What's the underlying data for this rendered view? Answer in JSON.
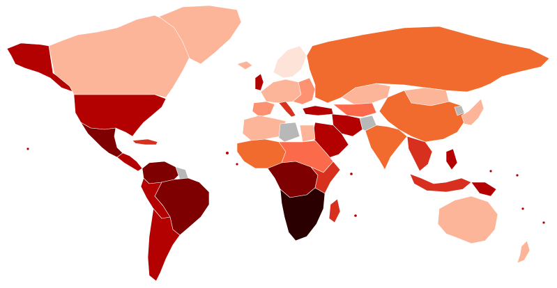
{
  "map": {
    "type": "choropleth",
    "background": "#ffffff",
    "border_color": "#ffffff",
    "palette": {
      "c0": "#fde3d8",
      "c1": "#fdb59a",
      "c2": "#fc9272",
      "c3": "#fb6a4a",
      "c4": "#f26b2e",
      "c5": "#d7301f",
      "c6": "#b30000",
      "c7": "#7f0000",
      "c8": "#4a0000",
      "c9": "#2b0000",
      "nodata": "#b8b8b8"
    },
    "regions": [
      {
        "id": "alaska",
        "level": "c6"
      },
      {
        "id": "canada",
        "level": "c1"
      },
      {
        "id": "greenland",
        "level": "c1"
      },
      {
        "id": "united-states",
        "level": "c6"
      },
      {
        "id": "mexico",
        "level": "c7"
      },
      {
        "id": "central-america",
        "level": "c6"
      },
      {
        "id": "caribbean",
        "level": "c5"
      },
      {
        "id": "colombia-venezuela",
        "level": "c7"
      },
      {
        "id": "guianas",
        "level": "nodata"
      },
      {
        "id": "brazil",
        "level": "c7"
      },
      {
        "id": "andean-west",
        "level": "c6"
      },
      {
        "id": "argentina-chile",
        "level": "c6"
      },
      {
        "id": "iceland",
        "level": "c1"
      },
      {
        "id": "uk-ireland",
        "level": "c6"
      },
      {
        "id": "scandinavia",
        "level": "c0"
      },
      {
        "id": "western-europe",
        "level": "c1"
      },
      {
        "id": "iberia",
        "level": "c2"
      },
      {
        "id": "italy",
        "level": "c5"
      },
      {
        "id": "eastern-europe",
        "level": "c2"
      },
      {
        "id": "turkey",
        "level": "c6"
      },
      {
        "id": "russia",
        "level": "c4"
      },
      {
        "id": "kazakhstan",
        "level": "c1"
      },
      {
        "id": "central-asia",
        "level": "c3"
      },
      {
        "id": "mongolia",
        "level": "c1"
      },
      {
        "id": "china",
        "level": "c4"
      },
      {
        "id": "japan-korea",
        "level": "c1"
      },
      {
        "id": "north-korea",
        "level": "nodata"
      },
      {
        "id": "iran",
        "level": "c6"
      },
      {
        "id": "afghanistan",
        "level": "nodata"
      },
      {
        "id": "arabia",
        "level": "c6"
      },
      {
        "id": "india",
        "level": "c4"
      },
      {
        "id": "southeast-asia",
        "level": "c5"
      },
      {
        "id": "indonesia",
        "level": "c5"
      },
      {
        "id": "philippines",
        "level": "c6"
      },
      {
        "id": "png",
        "level": "c6"
      },
      {
        "id": "australia",
        "level": "c1"
      },
      {
        "id": "new-zealand",
        "level": "c1"
      },
      {
        "id": "north-africa",
        "level": "c1"
      },
      {
        "id": "libya",
        "level": "nodata"
      },
      {
        "id": "egypt",
        "level": "c1"
      },
      {
        "id": "west-africa",
        "level": "c4"
      },
      {
        "id": "sahel-east",
        "level": "c3"
      },
      {
        "id": "central-africa",
        "level": "c7"
      },
      {
        "id": "east-africa",
        "level": "c5"
      },
      {
        "id": "southern-africa",
        "level": "c9"
      },
      {
        "id": "madagascar",
        "level": "c5"
      }
    ]
  }
}
